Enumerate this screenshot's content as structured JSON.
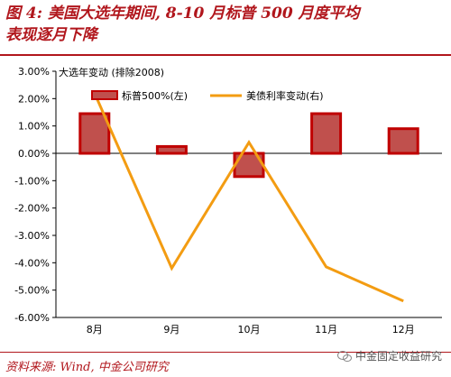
{
  "header": {
    "title_line1": "图 4:  美国大选年期间, 8-10 月标普 500 月度平均",
    "title_line2": "表现逐月下降"
  },
  "footer": {
    "source": "资料来源: Wind, 中金公司研究",
    "watermark": "中金固定收益研究"
  },
  "colors": {
    "accent": "#b1161c",
    "bar_fill": "#c0504d",
    "bar_border": "#c00000",
    "line": "#f39c12"
  },
  "chart_data": {
    "type": "bar",
    "annotation": "大选年变动 (排除2008)",
    "categories": [
      "8月",
      "9月",
      "10月",
      "11月",
      "12月"
    ],
    "series": [
      {
        "name": "标普500%(左)",
        "type": "bar",
        "axis": "left",
        "values": [
          1.45,
          0.25,
          -0.85,
          1.45,
          0.9
        ]
      },
      {
        "name": "美债利率变动(右)",
        "type": "line",
        "axis": "right",
        "values": [
          2.2,
          -4.2,
          0.4,
          -4.15,
          -5.4
        ]
      }
    ],
    "ylim": [
      -6,
      3
    ],
    "yticks": [
      "3.00%",
      "2.00%",
      "1.00%",
      "0.00%",
      "-1.00%",
      "-2.00%",
      "-3.00%",
      "-4.00%",
      "-5.00%",
      "-6.00%"
    ],
    "legend_position": "top",
    "grid": false
  }
}
